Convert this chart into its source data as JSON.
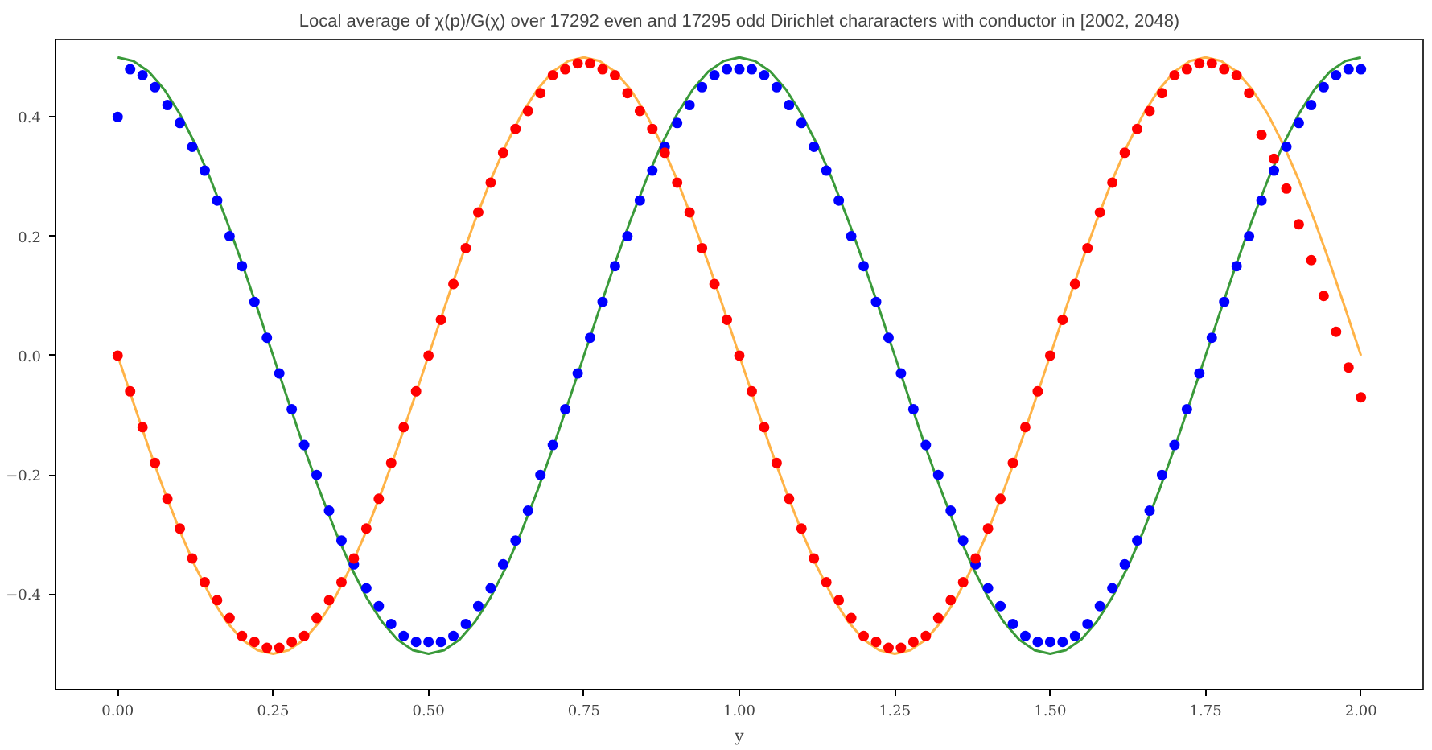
{
  "chart_data": {
    "type": "scatter",
    "title": "Local average of χ(p)/G(χ) over 17292 even and 17295 odd Dirichlet chararacters with conductor in [2002, 2048)",
    "xlabel": "y",
    "xlim": [
      -0.1,
      2.1
    ],
    "ylim": [
      -0.56,
      0.53
    ],
    "xticks": [
      {
        "value": 0,
        "label": "0.00"
      },
      {
        "value": 0.25,
        "label": "0.25"
      },
      {
        "value": 0.5,
        "label": "0.50"
      },
      {
        "value": 0.75,
        "label": "0.75"
      },
      {
        "value": 1,
        "label": "1.00"
      },
      {
        "value": 1.25,
        "label": "1.25"
      },
      {
        "value": 1.5,
        "label": "1.50"
      },
      {
        "value": 1.75,
        "label": "1.75"
      },
      {
        "value": 2,
        "label": "2.00"
      }
    ],
    "yticks": [
      {
        "value": -0.4,
        "label": "−0.4"
      },
      {
        "value": -0.2,
        "label": "−0.2"
      },
      {
        "value": 0,
        "label": "0.0"
      },
      {
        "value": 0.2,
        "label": "0.2"
      },
      {
        "value": 0.4,
        "label": "0.4"
      }
    ],
    "grid": false,
    "x": [
      0,
      0.02,
      0.04,
      0.06,
      0.08,
      0.1,
      0.12,
      0.14,
      0.16,
      0.18,
      0.2,
      0.22,
      0.24,
      0.26,
      0.28,
      0.3,
      0.32,
      0.34,
      0.36,
      0.38,
      0.4,
      0.42,
      0.44,
      0.46,
      0.48,
      0.5,
      0.52,
      0.54,
      0.56,
      0.58,
      0.6,
      0.62,
      0.64,
      0.66,
      0.68,
      0.7,
      0.72,
      0.74,
      0.76,
      0.78,
      0.8,
      0.82,
      0.84,
      0.86,
      0.88,
      0.9,
      0.92,
      0.94,
      0.96,
      0.98,
      1,
      1.02,
      1.04,
      1.06,
      1.08,
      1.1,
      1.12,
      1.14,
      1.16,
      1.18,
      1.2,
      1.22,
      1.24,
      1.26,
      1.28,
      1.3,
      1.32,
      1.34,
      1.36,
      1.38,
      1.4,
      1.42,
      1.44,
      1.46,
      1.48,
      1.5,
      1.52,
      1.54,
      1.56,
      1.58,
      1.6,
      1.62,
      1.64,
      1.66,
      1.68,
      1.7,
      1.72,
      1.74,
      1.76,
      1.78,
      1.8,
      1.82,
      1.84,
      1.86,
      1.88,
      1.9,
      1.92,
      1.94,
      1.96,
      1.98,
      2
    ],
    "series": [
      {
        "type": "line",
        "color": "#3a9a3a",
        "x": [
          0,
          0.025,
          0.05,
          0.075,
          0.1,
          0.125,
          0.15,
          0.175,
          0.2,
          0.225,
          0.25,
          0.275,
          0.3,
          0.325,
          0.35,
          0.375,
          0.4,
          0.425,
          0.45,
          0.475,
          0.5,
          0.525,
          0.55,
          0.575,
          0.6,
          0.625,
          0.65,
          0.675,
          0.7,
          0.725,
          0.75,
          0.775,
          0.8,
          0.825,
          0.85,
          0.875,
          0.9,
          0.925,
          0.95,
          0.975,
          1,
          1.025,
          1.05,
          1.075,
          1.1,
          1.125,
          1.15,
          1.175,
          1.2,
          1.225,
          1.25,
          1.275,
          1.3,
          1.325,
          1.35,
          1.375,
          1.4,
          1.425,
          1.45,
          1.475,
          1.5,
          1.525,
          1.55,
          1.575,
          1.6,
          1.625,
          1.65,
          1.675,
          1.7,
          1.725,
          1.75,
          1.775,
          1.8,
          1.825,
          1.85,
          1.875,
          1.9,
          1.925,
          1.95,
          1.975,
          2
        ],
        "values": [
          0.5,
          0.494,
          0.476,
          0.446,
          0.405,
          0.354,
          0.294,
          0.227,
          0.155,
          0.078,
          0,
          -0.078,
          -0.155,
          -0.227,
          -0.294,
          -0.354,
          -0.405,
          -0.446,
          -0.476,
          -0.494,
          -0.5,
          -0.494,
          -0.476,
          -0.446,
          -0.405,
          -0.354,
          -0.294,
          -0.227,
          -0.155,
          -0.078,
          0,
          0.078,
          0.155,
          0.227,
          0.294,
          0.354,
          0.405,
          0.446,
          0.476,
          0.494,
          0.5,
          0.494,
          0.476,
          0.446,
          0.405,
          0.354,
          0.294,
          0.227,
          0.155,
          0.078,
          0,
          -0.078,
          -0.155,
          -0.227,
          -0.294,
          -0.354,
          -0.405,
          -0.446,
          -0.476,
          -0.494,
          -0.5,
          -0.494,
          -0.476,
          -0.446,
          -0.405,
          -0.354,
          -0.294,
          -0.227,
          -0.155,
          -0.078,
          0,
          0.078,
          0.155,
          0.227,
          0.294,
          0.354,
          0.405,
          0.446,
          0.476,
          0.494,
          0.5
        ]
      },
      {
        "type": "line",
        "color": "#ffb347",
        "x": [
          0,
          0.025,
          0.05,
          0.075,
          0.1,
          0.125,
          0.15,
          0.175,
          0.2,
          0.225,
          0.25,
          0.275,
          0.3,
          0.325,
          0.35,
          0.375,
          0.4,
          0.425,
          0.45,
          0.475,
          0.5,
          0.525,
          0.55,
          0.575,
          0.6,
          0.625,
          0.65,
          0.675,
          0.7,
          0.725,
          0.75,
          0.775,
          0.8,
          0.825,
          0.85,
          0.875,
          0.9,
          0.925,
          0.95,
          0.975,
          1,
          1.025,
          1.05,
          1.075,
          1.1,
          1.125,
          1.15,
          1.175,
          1.2,
          1.225,
          1.25,
          1.275,
          1.3,
          1.325,
          1.35,
          1.375,
          1.4,
          1.425,
          1.45,
          1.475,
          1.5,
          1.525,
          1.55,
          1.575,
          1.6,
          1.625,
          1.65,
          1.675,
          1.7,
          1.725,
          1.75,
          1.775,
          1.8,
          1.825,
          1.85,
          1.875,
          1.9,
          1.925,
          1.95,
          1.975,
          2
        ],
        "values": [
          0,
          -0.078,
          -0.155,
          -0.227,
          -0.294,
          -0.354,
          -0.405,
          -0.446,
          -0.476,
          -0.494,
          -0.5,
          -0.494,
          -0.476,
          -0.446,
          -0.405,
          -0.354,
          -0.294,
          -0.227,
          -0.155,
          -0.078,
          0,
          0.078,
          0.155,
          0.227,
          0.294,
          0.354,
          0.405,
          0.446,
          0.476,
          0.494,
          0.5,
          0.494,
          0.476,
          0.446,
          0.405,
          0.354,
          0.294,
          0.227,
          0.155,
          0.078,
          0,
          -0.078,
          -0.155,
          -0.227,
          -0.294,
          -0.354,
          -0.405,
          -0.446,
          -0.476,
          -0.494,
          -0.5,
          -0.494,
          -0.476,
          -0.446,
          -0.405,
          -0.354,
          -0.294,
          -0.227,
          -0.155,
          -0.078,
          0,
          0.078,
          0.155,
          0.227,
          0.294,
          0.354,
          0.405,
          0.446,
          0.476,
          0.494,
          0.5,
          0.494,
          0.476,
          0.446,
          0.405,
          0.354,
          0.294,
          0.227,
          0.155,
          0.078,
          0
        ]
      },
      {
        "marker": "circle",
        "color": "#0000ff",
        "values": [
          0.4,
          0.48,
          0.47,
          0.45,
          0.42,
          0.39,
          0.35,
          0.31,
          0.26,
          0.2,
          0.15,
          0.09,
          0.03,
          -0.03,
          -0.09,
          -0.15,
          -0.2,
          -0.26,
          -0.31,
          -0.35,
          -0.39,
          -0.42,
          -0.45,
          -0.47,
          -0.48,
          -0.48,
          -0.48,
          -0.47,
          -0.45,
          -0.42,
          -0.39,
          -0.35,
          -0.31,
          -0.26,
          -0.2,
          -0.15,
          -0.09,
          -0.03,
          0.03,
          0.09,
          0.15,
          0.2,
          0.26,
          0.31,
          0.35,
          0.39,
          0.42,
          0.45,
          0.47,
          0.48,
          0.48,
          0.48,
          0.47,
          0.45,
          0.42,
          0.39,
          0.35,
          0.31,
          0.26,
          0.2,
          0.15,
          0.09,
          0.03,
          -0.03,
          -0.09,
          -0.15,
          -0.2,
          -0.26,
          -0.31,
          -0.35,
          -0.39,
          -0.42,
          -0.45,
          -0.47,
          -0.48,
          -0.48,
          -0.48,
          -0.47,
          -0.45,
          -0.42,
          -0.39,
          -0.35,
          -0.31,
          -0.26,
          -0.2,
          -0.15,
          -0.09,
          -0.03,
          0.03,
          0.09,
          0.15,
          0.2,
          0.26,
          0.31,
          0.35,
          0.39,
          0.42,
          0.45,
          0.47,
          0.48,
          0.48
        ]
      },
      {
        "marker": "circle",
        "color": "#ff0000",
        "values": [
          0,
          -0.06,
          -0.12,
          -0.18,
          -0.24,
          -0.29,
          -0.34,
          -0.38,
          -0.41,
          -0.44,
          -0.47,
          -0.48,
          -0.49,
          -0.49,
          -0.48,
          -0.47,
          -0.44,
          -0.41,
          -0.38,
          -0.34,
          -0.29,
          -0.24,
          -0.18,
          -0.12,
          -0.06,
          0,
          0.06,
          0.12,
          0.18,
          0.24,
          0.29,
          0.34,
          0.38,
          0.41,
          0.44,
          0.47,
          0.48,
          0.49,
          0.49,
          0.48,
          0.47,
          0.44,
          0.41,
          0.38,
          0.34,
          0.29,
          0.24,
          0.18,
          0.12,
          0.06,
          0,
          -0.06,
          -0.12,
          -0.18,
          -0.24,
          -0.29,
          -0.34,
          -0.38,
          -0.41,
          -0.44,
          -0.47,
          -0.48,
          -0.49,
          -0.49,
          -0.48,
          -0.47,
          -0.44,
          -0.41,
          -0.38,
          -0.34,
          -0.29,
          -0.24,
          -0.18,
          -0.12,
          -0.06,
          0,
          0.06,
          0.12,
          0.18,
          0.24,
          0.29,
          0.34,
          0.38,
          0.41,
          0.44,
          0.47,
          0.48,
          0.49,
          0.49,
          0.48,
          0.47,
          0.44,
          0.37,
          0.33,
          0.28,
          0.22,
          0.16,
          0.1,
          0.04,
          -0.02,
          -0.07
        ]
      }
    ]
  }
}
